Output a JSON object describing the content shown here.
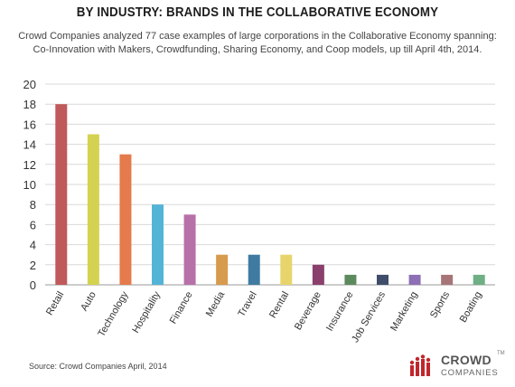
{
  "title": "BY INDUSTRY: BRANDS IN THE COLLABORATIVE ECONOMY",
  "subtitle": "Crowd Companies analyzed 77 case examples of large corporations in the Collaborative Economy spanning: Co-Innovation with Makers, Crowdfunding, Sharing Economy, and Coop models, up till April 4th, 2014.",
  "source": "Source: Crowd Companies April, 2014",
  "logo": {
    "name": "CROWD",
    "tm": "TM",
    "sub": "COMPANIES",
    "icon": "crowd-companies-logo-icon",
    "color": "#c0272d"
  },
  "chart_data": {
    "type": "bar",
    "categories": [
      "Retail",
      "Auto",
      "Technology",
      "Hospitality",
      "Finance",
      "Media",
      "Travel",
      "Rental",
      "Beverage",
      "Insurance",
      "Job Services",
      "Marketing",
      "Sports",
      "Boating"
    ],
    "values": [
      18,
      15,
      13,
      8,
      7,
      3,
      3,
      3,
      2,
      1,
      1,
      1,
      1,
      1
    ],
    "colors": [
      "#c0595a",
      "#d3d351",
      "#e57a4c",
      "#53b4d6",
      "#b870a8",
      "#d79b4d",
      "#3f7aa0",
      "#e7d56c",
      "#8a3f6c",
      "#5c8a5d",
      "#3f4d6a",
      "#8c6fb4",
      "#a77577",
      "#6eaf85"
    ],
    "ylim": [
      0,
      20
    ],
    "yticks": [
      0,
      2,
      4,
      6,
      8,
      10,
      12,
      14,
      16,
      18,
      20
    ],
    "grid": true,
    "legend": "none"
  }
}
